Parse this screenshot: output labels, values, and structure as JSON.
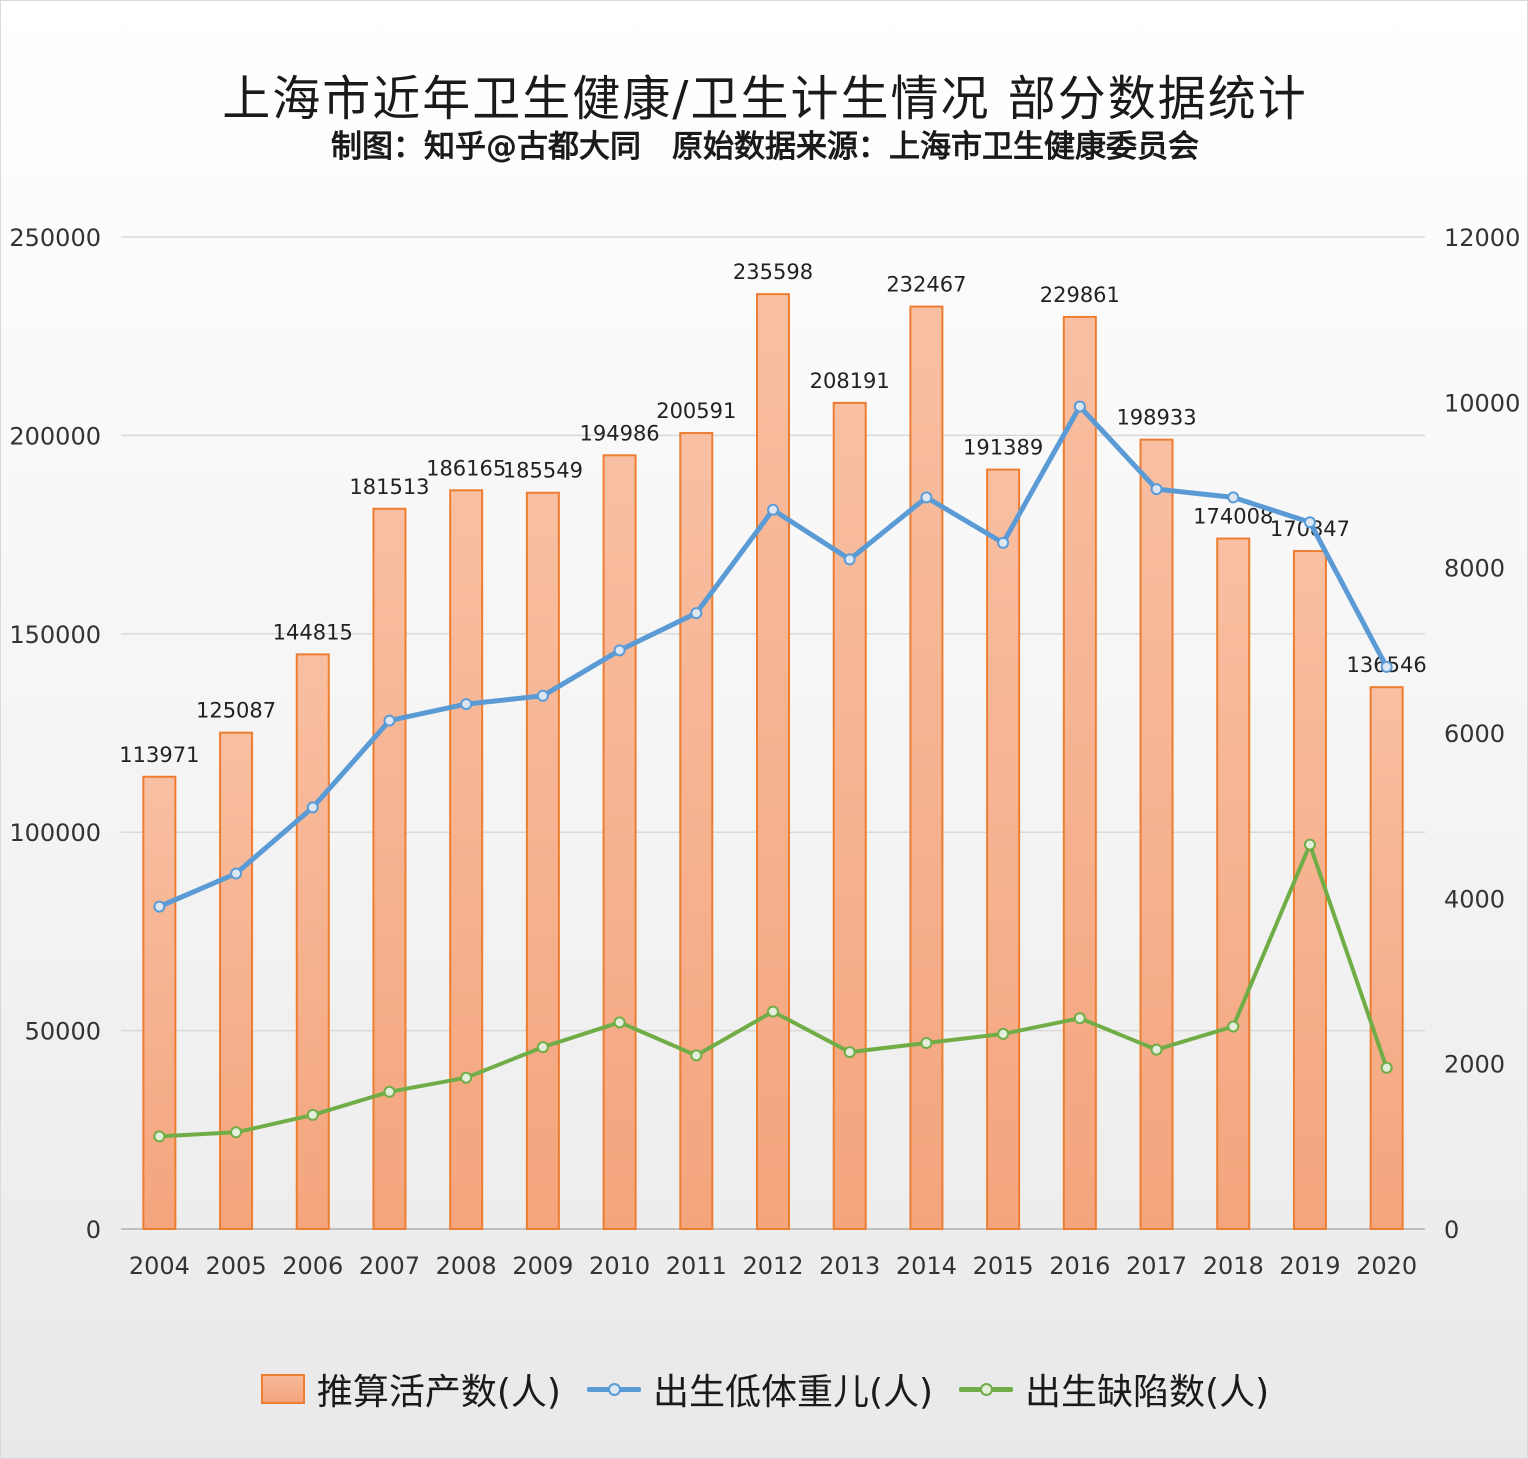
{
  "title": "上海市近年卫生健康/卫生计生情况 部分数据统计",
  "subtitle": "制图：知乎@古都大同　原始数据来源：上海市卫生健康委员会",
  "legend": {
    "bar": "推算活产数(人)",
    "line1": "出生低体重儿(人)",
    "line2": "出生缺陷数(人)"
  },
  "colors": {
    "bar_fill_top": "#f8bfa2",
    "bar_fill_bottom": "#f4a57d",
    "bar_border": "#ed7d31",
    "low_weight": "#5b9bd5",
    "birth_defect": "#70ad47",
    "grid": "#d9d9d9"
  },
  "chart_data": {
    "type": "bar+line",
    "categories": [
      "2004",
      "2005",
      "2006",
      "2007",
      "2008",
      "2009",
      "2010",
      "2011",
      "2012",
      "2013",
      "2014",
      "2015",
      "2016",
      "2017",
      "2018",
      "2019",
      "2020"
    ],
    "left_axis": {
      "min": 0,
      "max": 250000,
      "ticks": [
        0,
        50000,
        100000,
        150000,
        200000,
        250000
      ]
    },
    "right_axis": {
      "min": 0,
      "max": 12000,
      "ticks": [
        0,
        2000,
        4000,
        6000,
        8000,
        10000,
        12000
      ]
    },
    "grid": true,
    "legend_position": "bottom",
    "series": [
      {
        "name": "推算活产数(人)",
        "type": "bar",
        "axis": "left",
        "data_labels": true,
        "values": [
          113971,
          125087,
          144815,
          181513,
          186165,
          185549,
          194986,
          200591,
          235598,
          208191,
          232467,
          191389,
          229861,
          198933,
          174008,
          170847,
          136546
        ]
      },
      {
        "name": "出生低体重儿(人)",
        "type": "line",
        "axis": "right",
        "values": [
          3900,
          4300,
          5100,
          6150,
          6350,
          6450,
          7000,
          7450,
          8700,
          8100,
          8850,
          8300,
          9950,
          8950,
          8850,
          8550,
          6800
        ]
      },
      {
        "name": "出生缺陷数(人)",
        "type": "line",
        "axis": "right",
        "values": [
          1120,
          1170,
          1380,
          1660,
          1830,
          2200,
          2500,
          2100,
          2630,
          2140,
          2250,
          2360,
          2550,
          2170,
          2450,
          4650,
          1950
        ]
      }
    ]
  }
}
